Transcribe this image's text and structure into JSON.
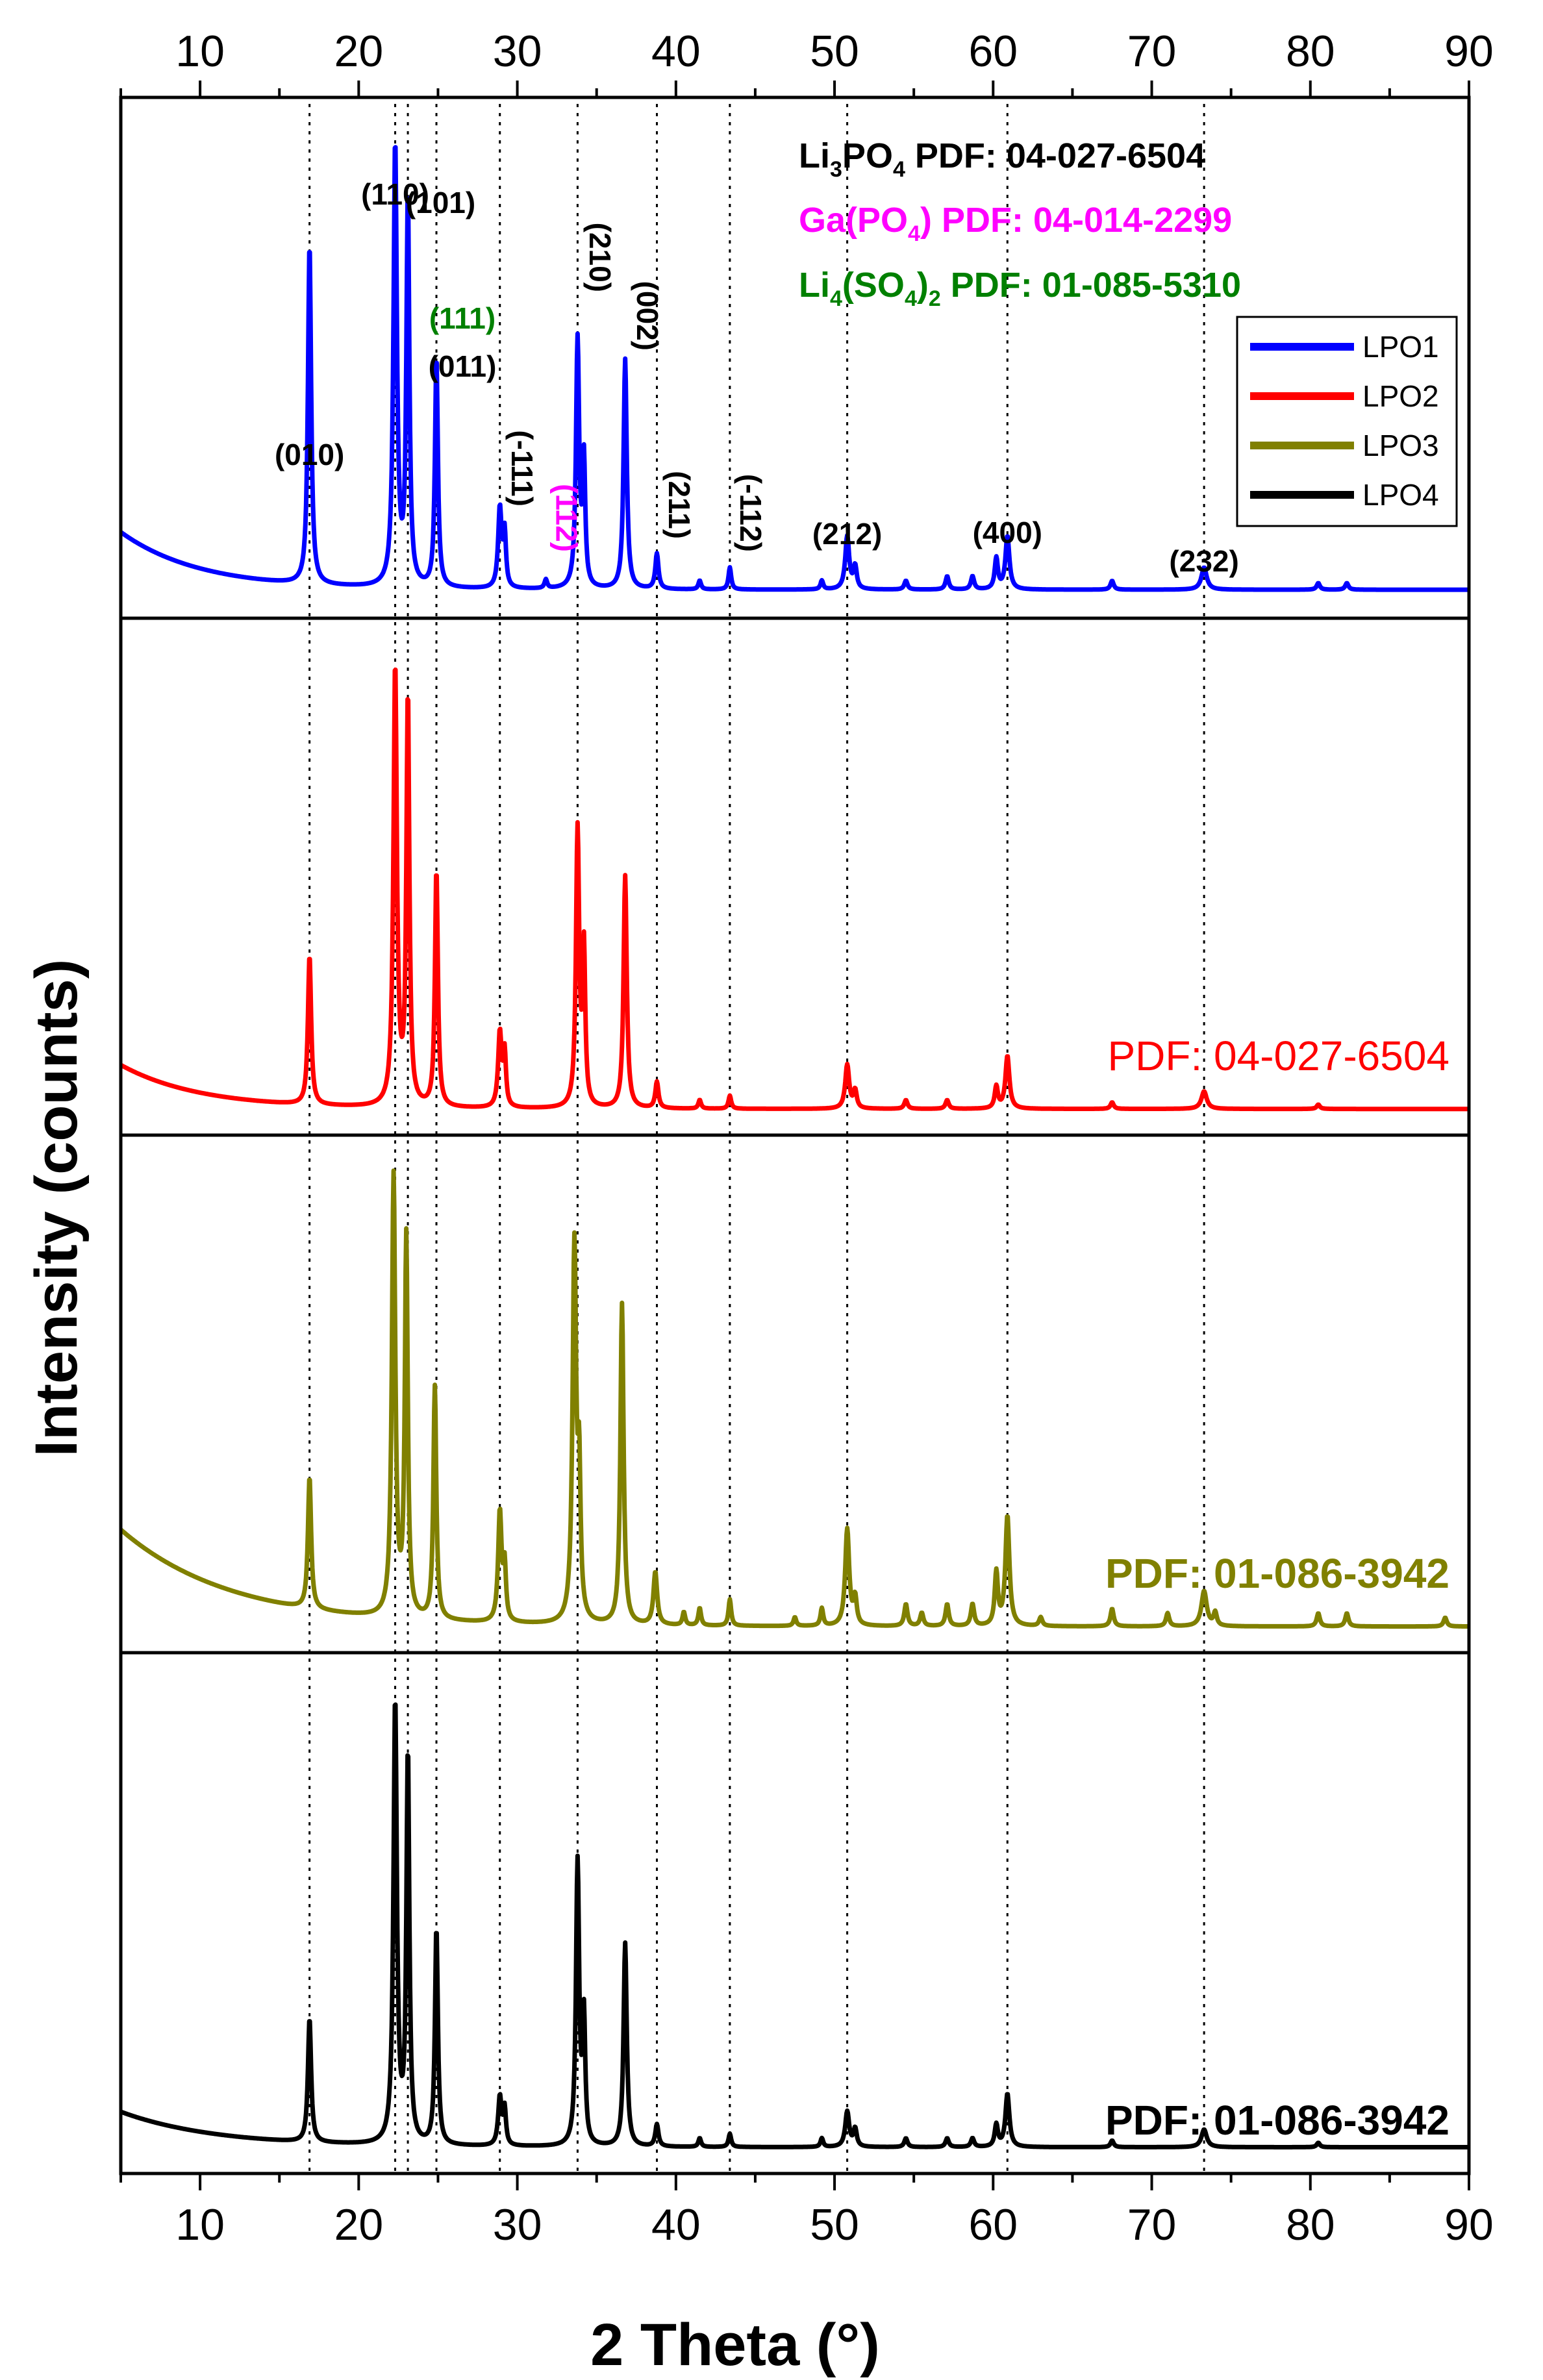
{
  "chart_data": {
    "type": "line",
    "xlabel": "2 Theta (°)",
    "ylabel": "Intensity (counts)",
    "xlim": [
      5,
      90
    ],
    "xticks": [
      10,
      20,
      30,
      40,
      50,
      60,
      70,
      80,
      90
    ],
    "legend": {
      "position": "top-right",
      "entries": [
        "LPO1",
        "LPO2",
        "LPO3",
        "LPO4"
      ]
    },
    "reference_lines": [
      16.9,
      22.3,
      23.1,
      24.9,
      28.9,
      33.8,
      38.8,
      43.4,
      50.8,
      60.9,
      73.3
    ],
    "phase_labels": [
      {
        "text": "Li3PO4 PDF: 04-027-6504",
        "color": "#000000",
        "main": "Li",
        "sub1": "3",
        "rest": "PO",
        "sub2": "4",
        "tail": " PDF: 04-027-6504"
      },
      {
        "text": "Ga(PO4) PDF: 04-014-2299",
        "color": "#FF00FF",
        "main": "Ga(PO",
        "sub1": "4",
        "rest": ")",
        "tail": " PDF: 04-014-2299"
      },
      {
        "text": "Li4(SO4)2 PDF: 01-085-5310",
        "color": "#008000",
        "main": "Li",
        "sub1": "4",
        "rest": "(SO",
        "sub2": "4",
        "rest2": ")",
        "sub3": "2",
        "tail": " PDF: 01-085-5310"
      }
    ],
    "hkl_labels": [
      {
        "text": "(010)",
        "x": 16.9,
        "color": "#000000",
        "rotate": false
      },
      {
        "text": "(110)",
        "x": 22.3,
        "color": "#000000",
        "rotate": false
      },
      {
        "text": "(101)",
        "x": 23.2,
        "color": "#000000",
        "rotate": false
      },
      {
        "text": "(111)",
        "x": 24.9,
        "color": "#008000",
        "rotate": false
      },
      {
        "text": "(011)",
        "x": 24.9,
        "color": "#000000",
        "rotate": false
      },
      {
        "text": "(-111)",
        "x": 29.0,
        "color": "#000000",
        "rotate": true
      },
      {
        "text": "(112)",
        "x": 31.8,
        "color": "#FF00FF",
        "rotate": true
      },
      {
        "text": "(210)",
        "x": 33.9,
        "color": "#000000",
        "rotate": true
      },
      {
        "text": "(002)",
        "x": 36.9,
        "color": "#000000",
        "rotate": true
      },
      {
        "text": "(211)",
        "x": 38.9,
        "color": "#000000",
        "rotate": true
      },
      {
        "text": "(-112)",
        "x": 43.4,
        "color": "#000000",
        "rotate": true
      },
      {
        "text": "(212)",
        "x": 50.8,
        "color": "#000000",
        "rotate": false
      },
      {
        "text": "(400)",
        "x": 60.9,
        "color": "#000000",
        "rotate": false
      },
      {
        "text": "(232)",
        "x": 73.3,
        "color": "#000000",
        "rotate": false
      }
    ],
    "series": [
      {
        "name": "LPO1",
        "color": "#0000FF",
        "pdf_label": "",
        "baseline": 0.035,
        "background": {
          "start": 0.13,
          "decay": 5
        },
        "peaks": [
          [
            16.9,
            0.77,
            0.12
          ],
          [
            22.3,
            1.0,
            0.13
          ],
          [
            23.1,
            0.88,
            0.11
          ],
          [
            24.9,
            0.52,
            0.11
          ],
          [
            28.9,
            0.18,
            0.13
          ],
          [
            29.2,
            0.12,
            0.1
          ],
          [
            31.8,
            0.02,
            0.1
          ],
          [
            33.8,
            0.56,
            0.12
          ],
          [
            34.2,
            0.28,
            0.1
          ],
          [
            36.8,
            0.52,
            0.12
          ],
          [
            38.8,
            0.08,
            0.12
          ],
          [
            41.5,
            0.02,
            0.1
          ],
          [
            43.4,
            0.05,
            0.1
          ],
          [
            49.2,
            0.02,
            0.1
          ],
          [
            50.8,
            0.12,
            0.15
          ],
          [
            51.3,
            0.05,
            0.12
          ],
          [
            54.5,
            0.02,
            0.12
          ],
          [
            57.1,
            0.03,
            0.12
          ],
          [
            58.7,
            0.03,
            0.12
          ],
          [
            60.2,
            0.07,
            0.12
          ],
          [
            60.9,
            0.12,
            0.15
          ],
          [
            67.5,
            0.02,
            0.12
          ],
          [
            73.3,
            0.05,
            0.2
          ],
          [
            80.5,
            0.015,
            0.12
          ],
          [
            82.3,
            0.015,
            0.12
          ]
        ]
      },
      {
        "name": "LPO2",
        "color": "#FF0000",
        "pdf_label": "PDF: 04-027-6504",
        "baseline": 0.03,
        "background": {
          "start": 0.1,
          "decay": 5
        },
        "peaks": [
          [
            16.9,
            0.34,
            0.12
          ],
          [
            22.3,
            1.0,
            0.13
          ],
          [
            23.1,
            0.93,
            0.11
          ],
          [
            24.9,
            0.54,
            0.11
          ],
          [
            28.9,
            0.17,
            0.13
          ],
          [
            29.2,
            0.12,
            0.1
          ],
          [
            33.8,
            0.63,
            0.12
          ],
          [
            34.2,
            0.35,
            0.1
          ],
          [
            36.8,
            0.53,
            0.12
          ],
          [
            38.8,
            0.06,
            0.12
          ],
          [
            41.5,
            0.02,
            0.1
          ],
          [
            43.4,
            0.03,
            0.1
          ],
          [
            50.8,
            0.1,
            0.15
          ],
          [
            51.3,
            0.04,
            0.12
          ],
          [
            54.5,
            0.02,
            0.12
          ],
          [
            57.1,
            0.02,
            0.12
          ],
          [
            60.2,
            0.05,
            0.12
          ],
          [
            60.9,
            0.12,
            0.15
          ],
          [
            67.5,
            0.015,
            0.12
          ],
          [
            73.3,
            0.04,
            0.2
          ],
          [
            80.5,
            0.01,
            0.12
          ]
        ]
      },
      {
        "name": "LPO3",
        "color": "#808000",
        "pdf_label": "PDF: 01-086-3942",
        "baseline": 0.03,
        "background": {
          "start": 0.22,
          "decay": 7
        },
        "peaks": [
          [
            16.9,
            0.3,
            0.12
          ],
          [
            22.2,
            1.0,
            0.13
          ],
          [
            23.0,
            0.86,
            0.11
          ],
          [
            24.8,
            0.53,
            0.11
          ],
          [
            28.9,
            0.25,
            0.13
          ],
          [
            29.2,
            0.12,
            0.1
          ],
          [
            33.6,
            0.86,
            0.14
          ],
          [
            33.9,
            0.3,
            0.1
          ],
          [
            36.6,
            0.73,
            0.12
          ],
          [
            38.7,
            0.12,
            0.14
          ],
          [
            40.5,
            0.03,
            0.1
          ],
          [
            41.5,
            0.04,
            0.1
          ],
          [
            43.4,
            0.06,
            0.1
          ],
          [
            47.5,
            0.02,
            0.1
          ],
          [
            49.2,
            0.04,
            0.1
          ],
          [
            50.8,
            0.22,
            0.15
          ],
          [
            51.3,
            0.06,
            0.12
          ],
          [
            54.5,
            0.05,
            0.12
          ],
          [
            55.5,
            0.03,
            0.12
          ],
          [
            57.1,
            0.05,
            0.12
          ],
          [
            58.7,
            0.05,
            0.12
          ],
          [
            60.2,
            0.12,
            0.12
          ],
          [
            60.9,
            0.25,
            0.15
          ],
          [
            63.0,
            0.02,
            0.12
          ],
          [
            67.5,
            0.04,
            0.12
          ],
          [
            71.0,
            0.03,
            0.12
          ],
          [
            73.3,
            0.08,
            0.2
          ],
          [
            74.0,
            0.03,
            0.12
          ],
          [
            80.5,
            0.03,
            0.12
          ],
          [
            82.3,
            0.03,
            0.12
          ],
          [
            88.5,
            0.02,
            0.12
          ]
        ]
      },
      {
        "name": "LPO4",
        "color": "#000000",
        "pdf_label": "PDF: 01-086-3942",
        "baseline": 0.03,
        "background": {
          "start": 0.08,
          "decay": 6
        },
        "peaks": [
          [
            16.9,
            0.28,
            0.12
          ],
          [
            22.3,
            1.0,
            0.13
          ],
          [
            23.1,
            0.88,
            0.11
          ],
          [
            24.9,
            0.49,
            0.11
          ],
          [
            28.9,
            0.11,
            0.13
          ],
          [
            29.2,
            0.08,
            0.1
          ],
          [
            33.8,
            0.64,
            0.12
          ],
          [
            34.2,
            0.28,
            0.1
          ],
          [
            36.8,
            0.46,
            0.12
          ],
          [
            38.8,
            0.05,
            0.12
          ],
          [
            41.5,
            0.02,
            0.1
          ],
          [
            43.4,
            0.03,
            0.1
          ],
          [
            49.2,
            0.02,
            0.1
          ],
          [
            50.8,
            0.08,
            0.15
          ],
          [
            51.3,
            0.04,
            0.12
          ],
          [
            54.5,
            0.02,
            0.12
          ],
          [
            57.1,
            0.02,
            0.12
          ],
          [
            58.7,
            0.02,
            0.12
          ],
          [
            60.2,
            0.05,
            0.12
          ],
          [
            60.9,
            0.12,
            0.15
          ],
          [
            67.5,
            0.015,
            0.12
          ],
          [
            73.3,
            0.04,
            0.2
          ],
          [
            80.5,
            0.01,
            0.12
          ]
        ]
      }
    ]
  }
}
